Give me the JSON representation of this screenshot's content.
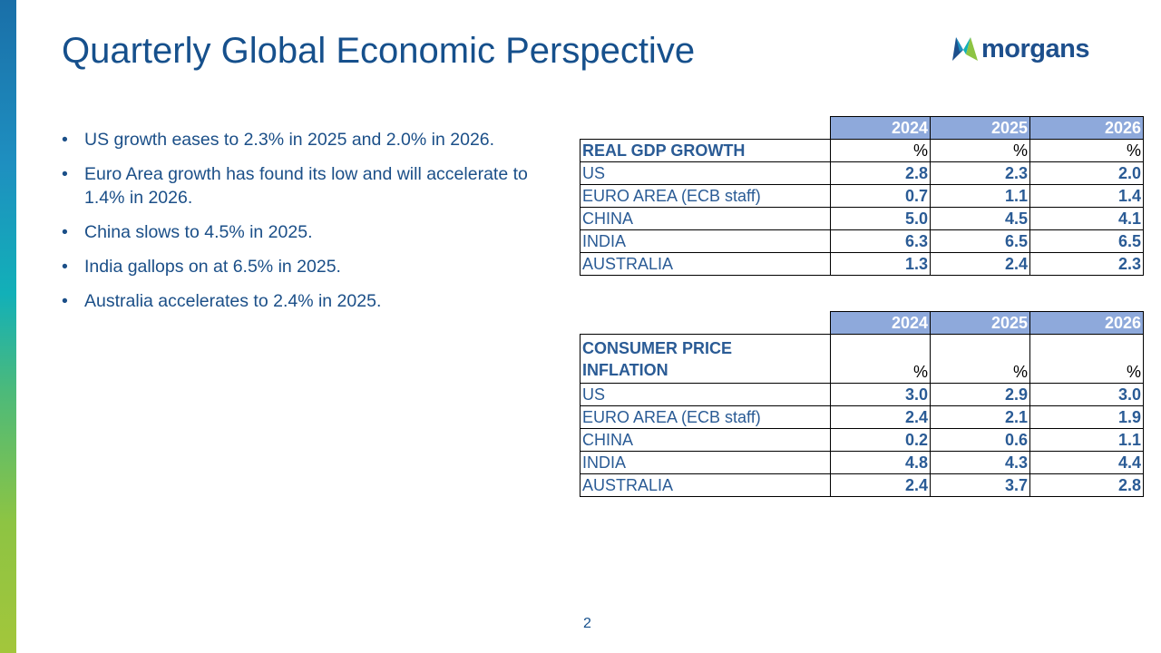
{
  "slide": {
    "title": "Quarterly Global Economic Perspective",
    "page_number": "2"
  },
  "logo": {
    "text": "morgans",
    "icon": "morgans-m-icon"
  },
  "bullets": [
    "US growth eases to 2.3% in 2025 and 2.0% in 2026.",
    "Euro Area growth has found its low and will accelerate to 1.4% in 2026.",
    "China slows to 4.5% in 2025.",
    "India gallops on at 6.5% in 2025.",
    "Australia accelerates to 2.4% in 2025."
  ],
  "gdp_table": {
    "years": [
      "2024",
      "2025",
      "2026"
    ],
    "heading": "REAL GDP GROWTH",
    "units": [
      "%",
      "%",
      "%"
    ],
    "rows": [
      {
        "label": "US",
        "values": [
          "2.8",
          "2.3",
          "2.0"
        ]
      },
      {
        "label": "EURO AREA (ECB staff)",
        "values": [
          "0.7",
          "1.1",
          "1.4"
        ]
      },
      {
        "label": "CHINA",
        "values": [
          "5.0",
          "4.5",
          "4.1"
        ]
      },
      {
        "label": "INDIA",
        "values": [
          "6.3",
          "6.5",
          "6.5"
        ]
      },
      {
        "label": "AUSTRALIA",
        "values": [
          "1.3",
          "2.4",
          "2.3"
        ]
      }
    ]
  },
  "cpi_table": {
    "years": [
      "2024",
      "2025",
      "2026"
    ],
    "heading_line1": "CONSUMER PRICE",
    "heading_line2": "INFLATION",
    "units": [
      "%",
      "%",
      "%"
    ],
    "rows": [
      {
        "label": "US",
        "values": [
          "3.0",
          "2.9",
          "3.0"
        ]
      },
      {
        "label": "EURO AREA (ECB staff)",
        "values": [
          "2.4",
          "2.1",
          "1.9"
        ]
      },
      {
        "label": "CHINA",
        "values": [
          "0.2",
          "0.6",
          "1.1"
        ]
      },
      {
        "label": "INDIA",
        "values": [
          "4.8",
          "4.3",
          "4.4"
        ]
      },
      {
        "label": "AUSTRALIA",
        "values": [
          "2.4",
          "3.7",
          "2.8"
        ]
      }
    ]
  },
  "colors": {
    "title": "#16508c",
    "header_fill": "#8ea9db",
    "table_text": "#2a5b95",
    "logo_navy": "#1d4f8c",
    "logo_green": "#8dc443"
  }
}
